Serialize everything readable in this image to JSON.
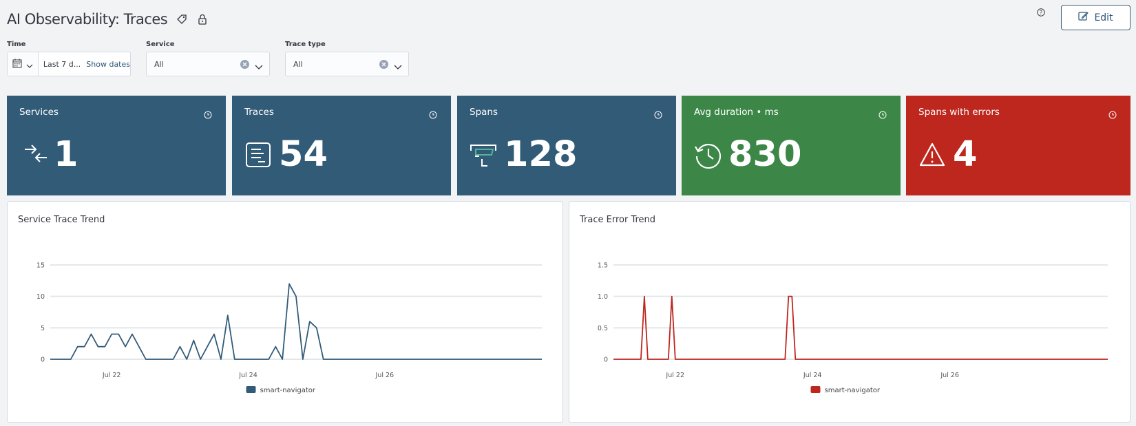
{
  "header": {
    "title": "AI Observability: Traces",
    "edit_label": "Edit"
  },
  "filters": {
    "time_label": "Time",
    "time_range": "Last 7 d...",
    "show_dates": "Show dates",
    "service_label": "Service",
    "service_value": "All",
    "trace_type_label": "Trace type",
    "trace_type_value": "All"
  },
  "kpis": [
    {
      "title": "Services",
      "value": "1",
      "color": "#325b78",
      "icon": "arrows-converge-icon"
    },
    {
      "title": "Traces",
      "value": "54",
      "color": "#325b78",
      "icon": "document-lines-icon"
    },
    {
      "title": "Spans",
      "value": "128",
      "color": "#325b78",
      "icon": "span-bracket-icon"
    },
    {
      "title": "Avg duration • ms",
      "value": "830",
      "color": "#3c8747",
      "icon": "history-clock-icon"
    },
    {
      "title": "Spans with errors",
      "value": "4",
      "color": "#bd271e",
      "icon": "warning-triangle-icon"
    }
  ],
  "chart_data": [
    {
      "type": "line",
      "title": "Service Trace Trend",
      "x_ticks": [
        "Jul 22",
        "Jul 24",
        "Jul 26"
      ],
      "y_ticks": [
        "0",
        "5",
        "10",
        "15"
      ],
      "ylim": [
        0,
        15
      ],
      "xlim": [
        0,
        72
      ],
      "grid": true,
      "legend_position": "bottom",
      "series": [
        {
          "name": "smart-navigator",
          "color": "#325b78",
          "x": [
            0,
            3,
            4,
            5,
            6,
            7,
            8,
            9,
            10,
            11,
            12,
            13,
            14,
            15,
            16,
            17,
            18,
            19,
            20,
            21,
            22,
            23,
            24,
            25,
            26,
            27,
            28,
            29,
            30,
            31,
            32,
            33,
            34,
            35,
            36,
            37,
            38,
            39,
            40,
            41,
            72
          ],
          "y": [
            0,
            0,
            2,
            2,
            4,
            2,
            2,
            4,
            4,
            2,
            4,
            2,
            0,
            0,
            0,
            0,
            0,
            2,
            0,
            3,
            0,
            2,
            4,
            0,
            7,
            0,
            0,
            0,
            0,
            0,
            0,
            2,
            0,
            12,
            10,
            0,
            6,
            5,
            0,
            0,
            0
          ]
        }
      ]
    },
    {
      "type": "line",
      "title": "Trace Error Trend",
      "x_ticks": [
        "Jul 22",
        "Jul 24",
        "Jul 26"
      ],
      "y_ticks": [
        "0",
        "0.5",
        "1.0",
        "1.5"
      ],
      "ylim": [
        0,
        1.5
      ],
      "xlim": [
        0,
        72
      ],
      "grid": true,
      "legend_position": "bottom",
      "series": [
        {
          "name": "smart-navigator",
          "color": "#bd271e",
          "x": [
            0,
            4,
            4.5,
            5,
            8,
            8.5,
            9,
            25,
            25.5,
            26,
            26.5,
            72
          ],
          "y": [
            0,
            0,
            1,
            0,
            0,
            1,
            0,
            0,
            1,
            1,
            0,
            0
          ]
        }
      ]
    }
  ]
}
